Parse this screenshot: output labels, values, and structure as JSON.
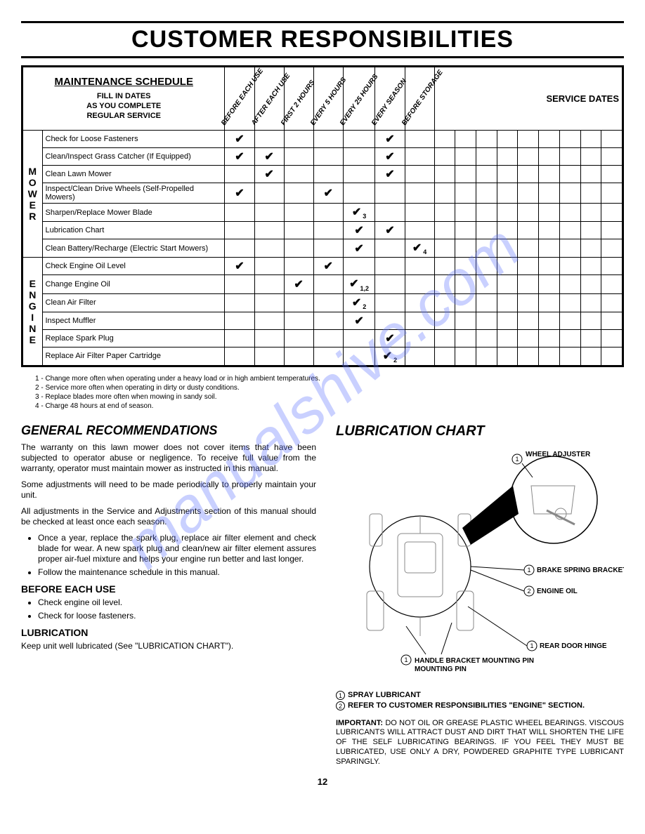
{
  "watermark": "manualshive.com",
  "title": "CUSTOMER RESPONSIBILITIES",
  "page_number": "12",
  "maint": {
    "header_title": "MAINTENANCE SCHEDULE",
    "header_sub_l1": "FILL IN DATES",
    "header_sub_l2": "AS YOU COMPLETE",
    "header_sub_l3": "REGULAR SERVICE",
    "diag_cols": [
      "BEFORE EACH USE",
      "AFTER EACH USE",
      "FIRST 2 HOURS",
      "EVERY 5 HOURS",
      "EVERY 25 HOURS",
      "EVERY SEASON",
      "BEFORE STORAGE"
    ],
    "service_dates_label": "SERVICE DATES",
    "categories": [
      {
        "label": "MOWER",
        "rows": [
          {
            "task": "Check for Loose Fasteners",
            "marks": [
              "✔",
              "",
              "",
              "",
              "",
              "✔",
              ""
            ],
            "subs": [
              "",
              "",
              "",
              "",
              "",
              "",
              ""
            ]
          },
          {
            "task": "Clean/Inspect Grass Catcher (If Equipped)",
            "marks": [
              "✔",
              "✔",
              "",
              "",
              "",
              "✔",
              ""
            ],
            "subs": [
              "",
              "",
              "",
              "",
              "",
              "",
              ""
            ]
          },
          {
            "task": "Clean Lawn Mower",
            "marks": [
              "",
              "✔",
              "",
              "",
              "",
              "✔",
              ""
            ],
            "subs": [
              "",
              "",
              "",
              "",
              "",
              "",
              ""
            ]
          },
          {
            "task": "Inspect/Clean Drive Wheels (Self-Propelled Mowers)",
            "marks": [
              "✔",
              "",
              "",
              "✔",
              "",
              "",
              ""
            ],
            "subs": [
              "",
              "",
              "",
              "",
              "",
              "",
              ""
            ]
          },
          {
            "task": "Sharpen/Replace Mower Blade",
            "marks": [
              "",
              "",
              "",
              "",
              "✔",
              "",
              ""
            ],
            "subs": [
              "",
              "",
              "",
              "",
              "3",
              "",
              ""
            ]
          },
          {
            "task": "Lubrication Chart",
            "marks": [
              "",
              "",
              "",
              "",
              "✔",
              "✔",
              ""
            ],
            "subs": [
              "",
              "",
              "",
              "",
              "",
              "",
              ""
            ]
          },
          {
            "task": "Clean Battery/Recharge (Electric Start Mowers)",
            "marks": [
              "",
              "",
              "",
              "",
              "✔",
              "",
              "✔"
            ],
            "subs": [
              "",
              "",
              "",
              "",
              "",
              "",
              "4"
            ]
          }
        ]
      },
      {
        "label": "ENGINE",
        "rows": [
          {
            "task": "Check Engine Oil Level",
            "marks": [
              "✔",
              "",
              "",
              "✔",
              "",
              "",
              ""
            ],
            "subs": [
              "",
              "",
              "",
              "",
              "",
              "",
              ""
            ]
          },
          {
            "task": "Change Engine Oil",
            "marks": [
              "",
              "",
              "✔",
              "",
              "✔",
              "",
              ""
            ],
            "subs": [
              "",
              "",
              "",
              "",
              "1,2",
              "",
              ""
            ]
          },
          {
            "task": "Clean Air Filter",
            "marks": [
              "",
              "",
              "",
              "",
              "✔",
              "",
              ""
            ],
            "subs": [
              "",
              "",
              "",
              "",
              "2",
              "",
              ""
            ]
          },
          {
            "task": "Inspect Muffler",
            "marks": [
              "",
              "",
              "",
              "",
              "✔",
              "",
              ""
            ],
            "subs": [
              "",
              "",
              "",
              "",
              "",
              "",
              ""
            ]
          },
          {
            "task": "Replace Spark Plug",
            "marks": [
              "",
              "",
              "",
              "",
              "",
              "✔",
              ""
            ],
            "subs": [
              "",
              "",
              "",
              "",
              "",
              "",
              ""
            ]
          },
          {
            "task": "Replace Air Filter Paper Cartridge",
            "marks": [
              "",
              "",
              "",
              "",
              "",
              "✔",
              ""
            ],
            "subs": [
              "",
              "",
              "",
              "",
              "",
              "2",
              ""
            ]
          }
        ]
      }
    ],
    "footnotes": [
      "1 - Change more often when operating under a heavy load or in high ambient temperatures.",
      "2 - Service more often when operating in dirty or dusty conditions.",
      "3 - Replace blades more often when mowing in sandy soil.",
      "4 - Charge 48 hours at end of season."
    ],
    "service_date_cols": 9
  },
  "left": {
    "h_general": "GENERAL RECOMMENDATIONS",
    "p1": "The warranty on this lawn mower does not cover items that have been subjected to operator abuse or negligence. To receive full value from the warranty, operator must maintain mower as instructed in this manual.",
    "p2": "Some adjustments will need to be made periodically to properly maintain your unit.",
    "p3": "All adjustments in the Service and Adjustments section of this manual should be checked at least once each season.",
    "bul1": "Once a year, replace the spark plug, replace air filter element and check blade for wear. A new spark plug and clean/new air filter element assures proper air-fuel mixture and helps your engine run better and last longer.",
    "bul2": "Follow the maintenance schedule in this manual.",
    "h_before": "BEFORE EACH USE",
    "bul3": "Check engine oil level.",
    "bul4": "Check for loose fasteners.",
    "h_lube": "LUBRICATION",
    "p4": "Keep unit well lubricated (See \"LUBRICATION CHART\")."
  },
  "right": {
    "title": "LUBRICATION CHART",
    "callouts": {
      "wheel": "WHEEL ADJUSTER",
      "brake": "BRAKE SPRING BRACKET",
      "engine_oil": "ENGINE OIL",
      "rear_door": "REAR DOOR HINGE",
      "handle": "HANDLE BRACKET MOUNTING PIN"
    },
    "legend1": "SPRAY LUBRICANT",
    "legend2": "REFER TO CUSTOMER RESPONSIBILITIES \"ENGINE\" SECTION.",
    "important_label": "IMPORTANT:",
    "important": "DO NOT OIL OR GREASE PLASTIC WHEEL BEARINGS. VISCOUS LUBRICANTS WILL ATTRACT DUST AND DIRT THAT WILL SHORTEN THE LIFE OF THE SELF LUBRICATING BEARINGS. IF YOU FEEL THEY MUST BE LUBRICATED, USE ONLY A DRY, POWDERED GRAPHITE TYPE LUBRICANT SPARINGLY."
  }
}
